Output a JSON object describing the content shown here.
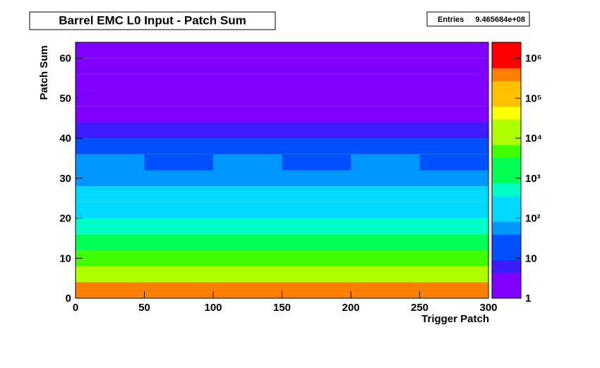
{
  "chart_data": {
    "type": "heatmap",
    "title": "Barrel EMC L0 Input - Patch Sum",
    "stats_label": "Entries",
    "stats_value": "9.465684e+08",
    "x_label": "Trigger Patch",
    "y_label": "Patch Sum",
    "x_bins": [
      0,
      50,
      100,
      150,
      200,
      250,
      300
    ],
    "y_bins": [
      0,
      4,
      8,
      12,
      16,
      20,
      24,
      28,
      32,
      36,
      40,
      44,
      48,
      52,
      56,
      60,
      64
    ],
    "z": [
      [
        300000,
        280000,
        310000,
        290000,
        300000,
        270000
      ],
      [
        20000,
        18000,
        21000,
        19000,
        20000,
        17000
      ],
      [
        4000,
        3800,
        4200,
        3900,
        4100,
        3600
      ],
      [
        1500,
        1400,
        1600,
        1450,
        1550,
        1300
      ],
      [
        500,
        480,
        520,
        490,
        510,
        450
      ],
      [
        250,
        240,
        260,
        245,
        255,
        220
      ],
      [
        120,
        110,
        125,
        115,
        120,
        100
      ],
      [
        60,
        55,
        62,
        58,
        60,
        50
      ],
      [
        30,
        28,
        32,
        29,
        30,
        25
      ],
      [
        15,
        14,
        16,
        14,
        15,
        12
      ],
      [
        6,
        5,
        6,
        5,
        6,
        5
      ],
      [
        3,
        3,
        3,
        3,
        3,
        2
      ],
      [
        2,
        2,
        2,
        2,
        2,
        2
      ],
      [
        1.5,
        1.5,
        1.5,
        1.5,
        1.5,
        1.5
      ],
      [
        1.2,
        1.2,
        1.2,
        1.2,
        1.2,
        1.2
      ],
      [
        2,
        2,
        2,
        2,
        2,
        2
      ]
    ],
    "xlim": [
      0,
      300
    ],
    "xticks": [
      0,
      50,
      100,
      150,
      200,
      250,
      300
    ],
    "ylim": [
      0,
      64
    ],
    "yticks": [
      0,
      10,
      20,
      30,
      40,
      50,
      60
    ],
    "zlim": [
      1,
      2500000
    ],
    "zlog": true,
    "zticks": [
      1,
      10,
      {
        "value": 100,
        "label": "10²"
      },
      {
        "value": 1000,
        "label": "10³"
      },
      {
        "value": 10000,
        "label": "10⁴"
      },
      {
        "value": 100000,
        "label": "10⁵"
      },
      {
        "value": 1000000,
        "label": "10⁶"
      }
    ],
    "colorscale": [
      "#7f00ff",
      "#3c1cff",
      "#0050ff",
      "#0096ff",
      "#00d8ff",
      "#00ffc8",
      "#00ff50",
      "#40ff00",
      "#b0ff00",
      "#ffff00",
      "#ffc000",
      "#ff8000",
      "#ff0000"
    ]
  }
}
